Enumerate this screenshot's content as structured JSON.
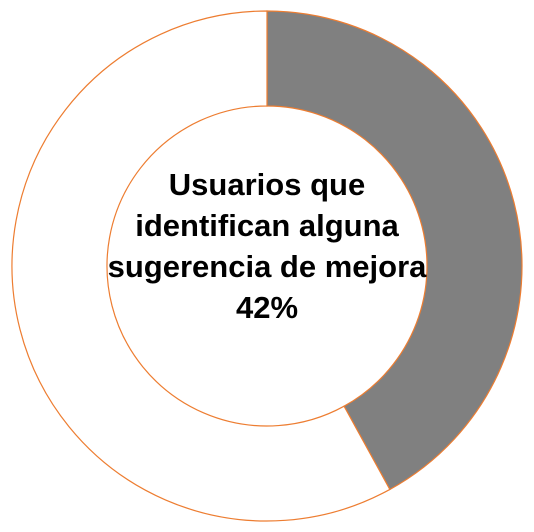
{
  "chart_data": {
    "type": "pie",
    "donut": true,
    "title": "Usuarios que identifican alguna sugerencia de mejora",
    "categories": [
      null,
      null
    ],
    "values": [
      42,
      58
    ],
    "value_labels": [
      "42%",
      null
    ],
    "colors": [
      "#808080",
      "#ffffff"
    ],
    "edge_color": "#ED7D31"
  }
}
